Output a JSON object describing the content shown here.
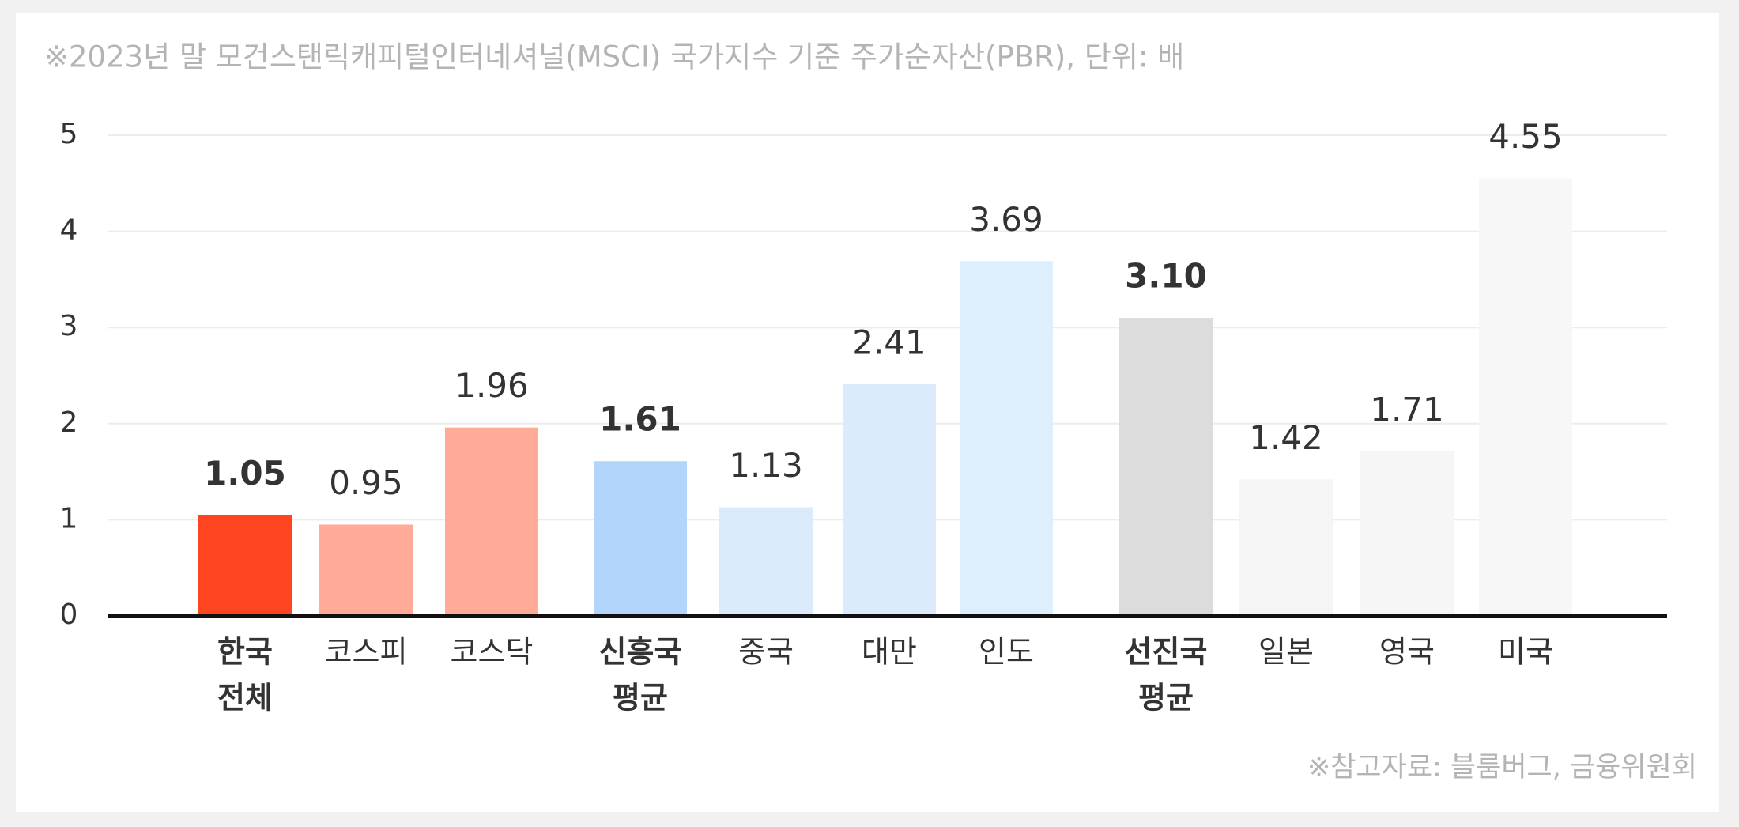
{
  "chart_data": {
    "type": "bar",
    "title": "※2023년 말 모건스탠릭캐피털인터네셔널(MSCI) 국가지수 기준 주가순자산(PBR), 단위: 배",
    "source": "※참고자료: 블룸버그, 금융위원회",
    "categories": [
      [
        "한국",
        "전체"
      ],
      [
        "코스피"
      ],
      [
        "코스닥"
      ],
      [
        "신흥국",
        "평균"
      ],
      [
        "중국"
      ],
      [
        "대만"
      ],
      [
        "인도"
      ],
      [
        "선진국",
        "평균"
      ],
      [
        "일본"
      ],
      [
        "영국"
      ],
      [
        "미국"
      ]
    ],
    "values": [
      1.05,
      0.95,
      1.96,
      1.61,
      1.13,
      2.41,
      3.69,
      3.1,
      1.42,
      1.71,
      4.55
    ],
    "value_labels": [
      "1.05",
      "0.95",
      "1.96",
      "1.61",
      "1.13",
      "2.41",
      "3.69",
      "3.10",
      "1.42",
      "1.71",
      "4.55"
    ],
    "colors": [
      "#ff4520",
      "#ffab98",
      "#ffab98",
      "#b3d5fb",
      "#dcebfb",
      "#dcebfb",
      "#ddeefc",
      "#dcdcdc",
      "#f5f5f5",
      "#f6f6f6",
      "#f7f7f7"
    ],
    "bold": [
      true,
      false,
      false,
      true,
      false,
      false,
      false,
      true,
      false,
      false,
      false
    ],
    "ylim": [
      0,
      5
    ],
    "yticks": [
      0,
      1,
      2,
      3,
      4,
      5
    ],
    "grid": true
  }
}
